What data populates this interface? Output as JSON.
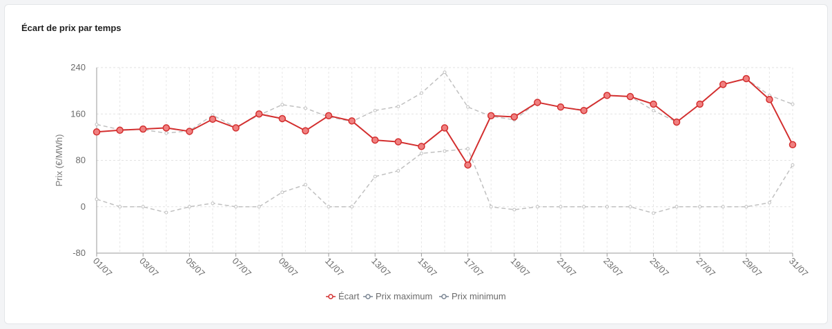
{
  "card": {
    "title": "Écart de prix par temps"
  },
  "chart_data": {
    "type": "line",
    "x": [
      "01/07",
      "02/07",
      "03/07",
      "04/07",
      "05/07",
      "06/07",
      "07/07",
      "08/07",
      "09/07",
      "10/07",
      "11/07",
      "12/07",
      "13/07",
      "14/07",
      "15/07",
      "16/07",
      "17/07",
      "18/07",
      "19/07",
      "20/07",
      "21/07",
      "22/07",
      "23/07",
      "24/07",
      "25/07",
      "26/07",
      "27/07",
      "28/07",
      "29/07",
      "30/07",
      "31/07"
    ],
    "x_tick_labels": [
      "01/07",
      "03/07",
      "05/07",
      "07/07",
      "09/07",
      "11/07",
      "13/07",
      "15/07",
      "17/07",
      "19/07",
      "21/07",
      "23/07",
      "25/07",
      "27/07",
      "29/07",
      "31/07"
    ],
    "ylabel": "Prix (€/MWh)",
    "ylim": [
      -80,
      240
    ],
    "yticks": [
      240,
      160,
      80,
      0,
      -80
    ],
    "grid": true,
    "legend_position": "bottom-center",
    "series": [
      {
        "name": "Écart",
        "color": "#d32f2f",
        "style": "solid-markers",
        "values": [
          129,
          132,
          134,
          136,
          130,
          151,
          136,
          160,
          152,
          131,
          157,
          148,
          115,
          112,
          104,
          136,
          72,
          157,
          155,
          180,
          172,
          166,
          192,
          190,
          177,
          146,
          177,
          211,
          221,
          185,
          107
        ]
      },
      {
        "name": "Prix maximum",
        "color": "#c0c0c0",
        "style": "dashed",
        "values": [
          142,
          133,
          133,
          127,
          131,
          158,
          137,
          158,
          176,
          170,
          155,
          147,
          166,
          173,
          196,
          232,
          172,
          156,
          150,
          180,
          172,
          167,
          192,
          190,
          166,
          146,
          177,
          211,
          221,
          192,
          177
        ]
      },
      {
        "name": "Prix minimum",
        "color": "#c0c0c0",
        "style": "dashed",
        "values": [
          13,
          0,
          0,
          -10,
          0,
          6,
          0,
          0,
          25,
          38,
          0,
          0,
          52,
          62,
          92,
          96,
          100,
          0,
          -5,
          0,
          0,
          0,
          0,
          0,
          -11,
          0,
          0,
          0,
          0,
          7,
          72
        ]
      }
    ]
  }
}
